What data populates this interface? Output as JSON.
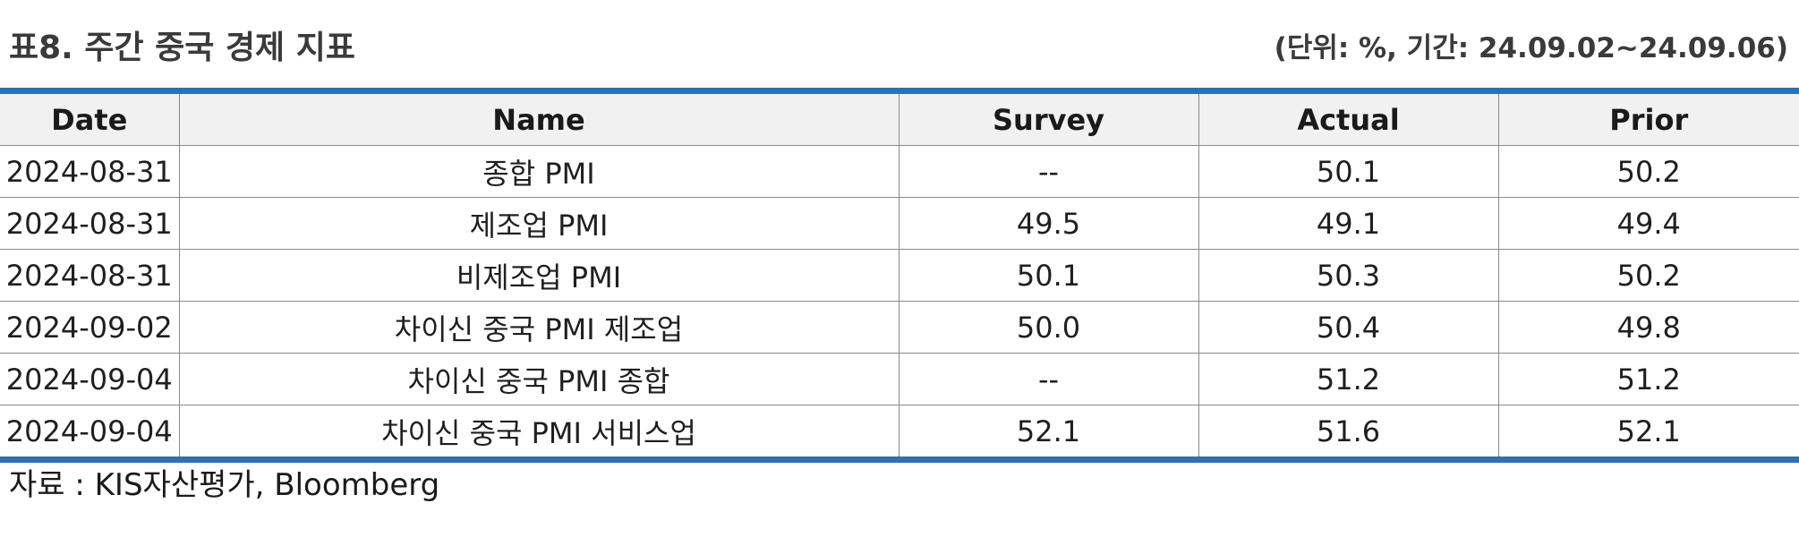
{
  "header": {
    "title": "표8. 주간 중국 경제 지표",
    "unit": "(단위: %, 기간: 24.09.02~24.09.06)"
  },
  "table": {
    "columns": [
      "Date",
      "Name",
      "Survey",
      "Actual",
      "Prior"
    ],
    "rows": [
      [
        "2024-08-31",
        "종합 PMI",
        "--",
        "50.1",
        "50.2"
      ],
      [
        "2024-08-31",
        "제조업 PMI",
        "49.5",
        "49.1",
        "49.4"
      ],
      [
        "2024-08-31",
        "비제조업 PMI",
        "50.1",
        "50.3",
        "50.2"
      ],
      [
        "2024-09-02",
        "차이신 중국 PMI 제조업",
        "50.0",
        "50.4",
        "49.8"
      ],
      [
        "2024-09-04",
        "차이신 중국 PMI 종합",
        "--",
        "51.2",
        "51.2"
      ],
      [
        "2024-09-04",
        "차이신 중국 PMI 서비스업",
        "52.1",
        "51.6",
        "52.1"
      ]
    ]
  },
  "footer": {
    "source": "자료 : KIS자산평가, Bloomberg"
  },
  "colors": {
    "rule": "#2e6fb0",
    "header_bg": "#f1f1f1"
  }
}
